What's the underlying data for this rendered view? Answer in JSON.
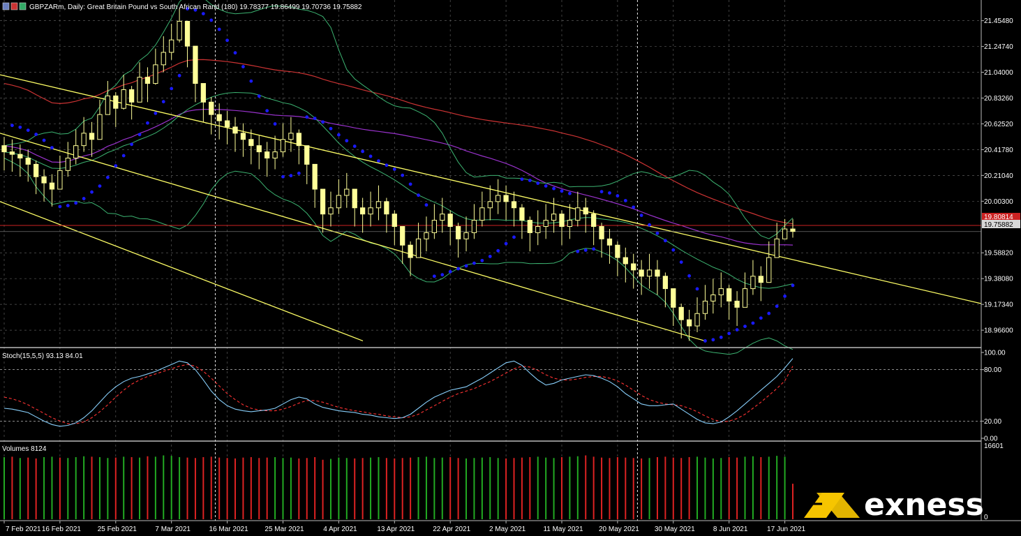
{
  "header": {
    "title": "GBPZARm, Daily:  Great Britain Pound vs South African Rand (180)  19.78377 19.86499 19.70736 19.75882"
  },
  "indicators": {
    "stoch_label": "Stoch(15,5,5) 93.13 84.01",
    "volume_label": "Volumes 8124"
  },
  "price_axis": {
    "ticks": [
      "21.45480",
      "21.24740",
      "21.04000",
      "20.83260",
      "20.62520",
      "20.41780",
      "20.21040",
      "20.00300",
      "19.58820",
      "19.38080",
      "19.17340",
      "18.96600"
    ],
    "tick_values": [
      21.4548,
      21.2474,
      21.04,
      20.8326,
      20.6252,
      20.4178,
      20.2104,
      20.003,
      19.5882,
      19.3808,
      19.1734,
      18.966
    ],
    "red_line_label": "19.80814",
    "red_line_value": 19.80814,
    "current_label": "19.75882",
    "current_value": 19.75882
  },
  "stoch_axis": {
    "ticks": [
      "100.00",
      "80.00",
      "20.00",
      "0.00"
    ],
    "tick_values": [
      100,
      80,
      20,
      0
    ]
  },
  "volume_axis": {
    "top": "16601",
    "bottom": "0"
  },
  "time_axis": {
    "labels": [
      "7 Feb 2021",
      "16 Feb 2021",
      "25 Feb 2021",
      "7 Mar 2021",
      "16 Mar 2021",
      "25 Mar 2021",
      "4 Apr 2021",
      "13 Apr 2021",
      "22 Apr 2021",
      "2 May 2021",
      "11 May 2021",
      "20 May 2021",
      "30 May 2021",
      "8 Jun 2021",
      "17 Jun 2021"
    ],
    "bar_index": [
      0,
      7,
      14,
      21,
      28,
      35,
      42,
      49,
      56,
      63,
      70,
      77,
      84,
      91,
      98
    ]
  },
  "logo": {
    "word": "exness"
  },
  "colors": {
    "background": "#000000",
    "grid": "#5a5a5a",
    "candle": "#ffff99",
    "channel": "#ffff66",
    "sar": "#1a1aff",
    "bollinger": "#3cb371",
    "ma_long": "#cc3333",
    "ma_mid": "#9932cc",
    "stoch_main": "#87cefa",
    "stoch_signal": "#ff3333",
    "vol_up": "#22aa22",
    "vol_down": "#dd2222",
    "logo_yellow": "#f5c400"
  },
  "chart_data": [
    {
      "type": "candlestick",
      "title": "GBPZARm, Daily",
      "x_start": "7 Feb 2021",
      "x_end": "17 Jun 2021",
      "ylim": [
        18.86,
        21.52
      ],
      "closes": [
        20.4,
        20.38,
        20.35,
        20.3,
        20.2,
        20.15,
        20.1,
        20.25,
        20.35,
        20.45,
        20.55,
        20.5,
        20.7,
        20.85,
        20.75,
        20.9,
        20.8,
        21.0,
        20.95,
        21.1,
        21.2,
        21.3,
        21.45,
        21.25,
        20.95,
        20.8,
        20.7,
        20.65,
        20.6,
        20.55,
        20.5,
        20.45,
        20.4,
        20.35,
        20.4,
        20.5,
        20.55,
        20.45,
        20.3,
        20.1,
        19.9,
        19.95,
        20.05,
        20.1,
        19.95,
        19.9,
        19.95,
        20.0,
        19.9,
        19.8,
        19.65,
        19.55,
        19.7,
        19.75,
        19.85,
        19.9,
        19.8,
        19.7,
        19.75,
        19.85,
        19.95,
        20.0,
        20.05,
        20.0,
        19.95,
        19.85,
        19.75,
        19.8,
        19.85,
        19.9,
        19.8,
        19.85,
        19.95,
        19.9,
        19.8,
        19.7,
        19.65,
        19.55,
        19.5,
        19.45,
        19.4,
        19.45,
        19.4,
        19.3,
        19.15,
        19.05,
        19.0,
        19.1,
        19.2,
        19.25,
        19.3,
        19.2,
        19.15,
        19.3,
        19.4,
        19.35,
        19.55,
        19.7,
        19.78,
        19.76
      ],
      "highs": [
        20.52,
        20.5,
        20.46,
        20.42,
        20.33,
        20.26,
        20.22,
        20.37,
        20.48,
        20.58,
        20.68,
        20.64,
        20.82,
        20.97,
        20.88,
        21.02,
        20.93,
        21.12,
        21.08,
        21.23,
        21.33,
        21.43,
        21.55,
        21.39,
        21.09,
        20.94,
        20.84,
        20.79,
        20.73,
        20.68,
        20.63,
        20.58,
        20.53,
        20.48,
        20.53,
        20.63,
        20.68,
        20.58,
        20.43,
        20.23,
        20.03,
        20.08,
        20.18,
        20.23,
        20.08,
        20.03,
        20.08,
        20.13,
        20.03,
        19.93,
        19.78,
        19.68,
        19.83,
        19.88,
        19.98,
        20.03,
        19.93,
        19.83,
        19.88,
        19.98,
        20.08,
        20.13,
        20.18,
        20.13,
        20.08,
        19.98,
        19.88,
        19.93,
        19.98,
        20.03,
        19.93,
        19.98,
        20.08,
        20.03,
        19.93,
        19.83,
        19.78,
        19.68,
        19.63,
        19.58,
        19.53,
        19.58,
        19.53,
        19.43,
        19.28,
        19.18,
        19.13,
        19.23,
        19.33,
        19.38,
        19.43,
        19.33,
        19.28,
        19.43,
        19.53,
        19.48,
        19.68,
        19.83,
        19.86,
        19.86
      ],
      "lows": [
        20.25,
        20.24,
        20.2,
        20.16,
        20.06,
        20.0,
        19.96,
        20.1,
        20.2,
        20.3,
        20.4,
        20.36,
        20.54,
        20.7,
        20.6,
        20.74,
        20.66,
        20.84,
        20.8,
        20.94,
        21.04,
        21.14,
        21.28,
        21.08,
        20.8,
        20.64,
        20.54,
        20.5,
        20.46,
        20.4,
        20.36,
        20.3,
        20.26,
        20.2,
        20.26,
        20.36,
        20.4,
        20.3,
        20.14,
        19.95,
        19.75,
        19.8,
        19.9,
        19.95,
        19.8,
        19.75,
        19.8,
        19.85,
        19.75,
        19.65,
        19.5,
        19.4,
        19.55,
        19.6,
        19.7,
        19.75,
        19.65,
        19.55,
        19.6,
        19.7,
        19.8,
        19.85,
        19.9,
        19.85,
        19.8,
        19.7,
        19.6,
        19.65,
        19.7,
        19.75,
        19.65,
        19.7,
        19.8,
        19.75,
        19.65,
        19.55,
        19.5,
        19.4,
        19.35,
        19.3,
        19.25,
        19.3,
        19.25,
        19.15,
        19.0,
        18.9,
        18.88,
        18.95,
        19.05,
        19.1,
        19.15,
        19.05,
        19.0,
        19.15,
        19.25,
        19.2,
        19.4,
        19.55,
        19.7,
        19.71
      ]
    },
    {
      "type": "line",
      "title": "Stoch(15,5,5)",
      "ylim": [
        0,
        100
      ],
      "series": [
        {
          "name": "main",
          "values": [
            35,
            34,
            32,
            30,
            25,
            20,
            16,
            14,
            15,
            18,
            24,
            32,
            42,
            52,
            60,
            66,
            70,
            72,
            75,
            78,
            82,
            86,
            90,
            88,
            80,
            68,
            55,
            45,
            38,
            34,
            32,
            31,
            32,
            33,
            35,
            40,
            45,
            48,
            46,
            40,
            36,
            34,
            32,
            31,
            30,
            28,
            27,
            25,
            24,
            23,
            24,
            28,
            35,
            42,
            48,
            52,
            56,
            58,
            60,
            65,
            70,
            76,
            82,
            88,
            90,
            85,
            76,
            68,
            62,
            64,
            68,
            70,
            72,
            74,
            73,
            70,
            66,
            60,
            52,
            46,
            40,
            38,
            38,
            39,
            40,
            34,
            28,
            22,
            18,
            17,
            19,
            25,
            32,
            40,
            48,
            56,
            64,
            72,
            82,
            93
          ]
        },
        {
          "name": "signal",
          "values": [
            48,
            46,
            43,
            39,
            34,
            29,
            24,
            20,
            17,
            17,
            19,
            24,
            31,
            39,
            48,
            56,
            63,
            68,
            72,
            75,
            78,
            81,
            84,
            86,
            84,
            78,
            70,
            61,
            52,
            45,
            39,
            35,
            33,
            32,
            32,
            34,
            37,
            41,
            44,
            44,
            42,
            39,
            36,
            34,
            32,
            31,
            29,
            28,
            26,
            25,
            24,
            25,
            28,
            33,
            38,
            43,
            48,
            52,
            55,
            58,
            62,
            66,
            71,
            76,
            81,
            84,
            83,
            79,
            74,
            70,
            68,
            68,
            69,
            71,
            72,
            72,
            70,
            67,
            62,
            56,
            50,
            45,
            42,
            40,
            39,
            38,
            35,
            31,
            26,
            22,
            19,
            20,
            23,
            28,
            35,
            42,
            50,
            58,
            67,
            84
          ]
        }
      ]
    },
    {
      "type": "bar",
      "title": "Volumes",
      "ylim": [
        0,
        16601
      ],
      "values": [
        14200,
        14300,
        14000,
        14100,
        13900,
        14200,
        14300,
        14100,
        14000,
        14200,
        14400,
        14300,
        14200,
        14000,
        14100,
        14300,
        14200,
        14100,
        14400,
        14300,
        14600,
        14500,
        14200,
        14100,
        14000,
        14200,
        14300,
        14100,
        14000,
        13900,
        14100,
        14200,
        14000,
        14100,
        14200,
        14000,
        14100,
        13900,
        14000,
        14200,
        13600,
        13800,
        14100,
        14000,
        13900,
        14000,
        14100,
        14200,
        14000,
        13900,
        14000,
        14100,
        14200,
        14300,
        14000,
        14100,
        14200,
        14000,
        13900,
        14000,
        14100,
        14200,
        14000,
        13900,
        14000,
        14100,
        14200,
        14300,
        14100,
        14000,
        14200,
        14300,
        14400,
        14600,
        14300,
        14100,
        14000,
        14200,
        14100,
        14000,
        13900,
        14000,
        14200,
        14300,
        14100,
        14000,
        14200,
        14300,
        14100,
        13900,
        14000,
        14200,
        14100,
        14300,
        14400,
        14200,
        14300,
        14500,
        14300,
        8124
      ],
      "up": [
        1,
        0,
        1,
        0,
        0,
        1,
        1,
        0,
        1,
        1,
        1,
        0,
        1,
        1,
        0,
        1,
        0,
        1,
        0,
        1,
        1,
        1,
        1,
        0,
        0,
        0,
        0,
        0,
        0,
        0,
        0,
        0,
        0,
        0,
        1,
        1,
        1,
        0,
        0,
        0,
        0,
        1,
        1,
        1,
        0,
        0,
        1,
        1,
        0,
        0,
        0,
        0,
        1,
        1,
        1,
        1,
        0,
        0,
        1,
        1,
        1,
        1,
        1,
        0,
        0,
        0,
        0,
        1,
        1,
        1,
        0,
        1,
        1,
        0,
        0,
        0,
        0,
        0,
        0,
        0,
        0,
        1,
        0,
        0,
        0,
        0,
        0,
        1,
        1,
        1,
        1,
        0,
        0,
        1,
        1,
        0,
        1,
        1,
        1,
        0
      ]
    }
  ]
}
